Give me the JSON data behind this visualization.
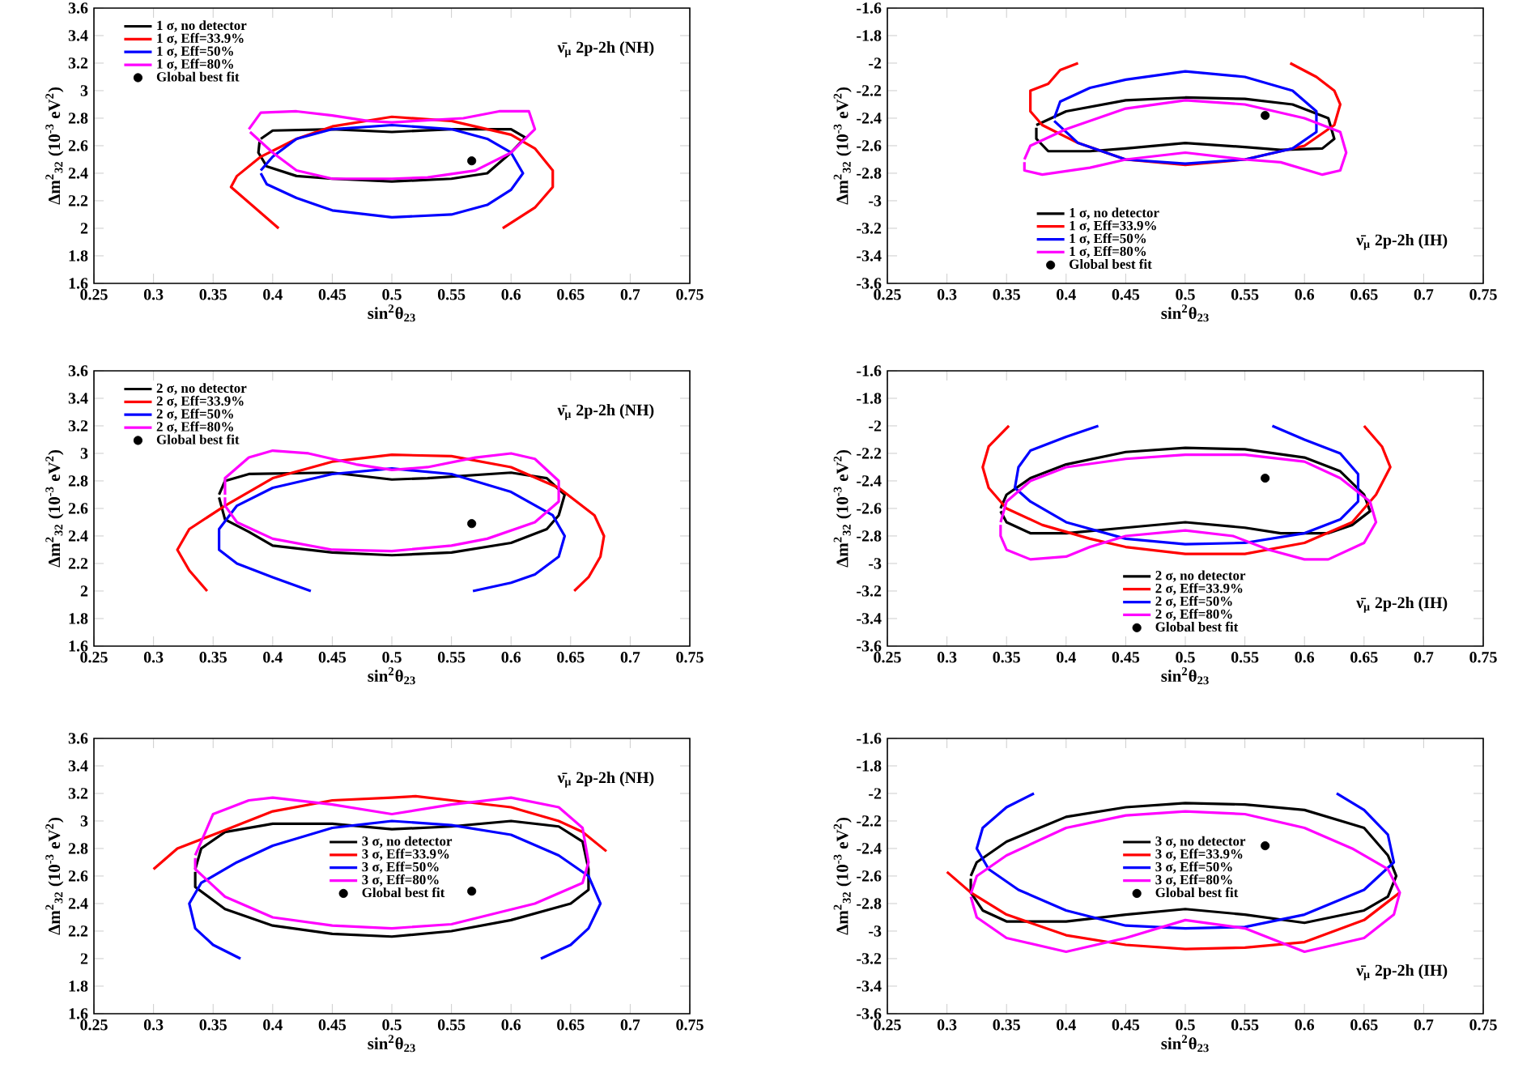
{
  "chart_data": [
    {
      "type": "line",
      "xlabel": "sin$^{2}$θ$_{23}$",
      "ylabel": "Δm$^{2}$$_{32}$ (10$^{-3}$ eV$^{2}$)",
      "annotations": [
        "ν̄$_{μ}$ 2p-2h (NH)"
      ],
      "legend": "top left",
      "xlim": [
        0.25,
        0.75
      ],
      "ylim": [
        1.6,
        3.6
      ],
      "xticks": [
        0.25,
        0.3,
        0.35,
        0.4,
        0.45,
        0.5,
        0.55,
        0.6,
        0.65,
        0.7,
        0.75
      ],
      "yticks": [
        1.6,
        1.8,
        2,
        2.2,
        2.4,
        2.6,
        2.8,
        3,
        3.2,
        3.4,
        3.6
      ],
      "series": [
        {
          "name": "1 σ, no detector",
          "color": "#000000",
          "x": [
            0.39,
            0.4,
            0.45,
            0.5,
            0.55,
            0.6,
            0.612,
            0.6,
            0.58,
            0.55,
            0.5,
            0.45,
            0.42,
            0.395,
            0.388,
            0.389
          ],
          "values": [
            2.65,
            2.71,
            2.72,
            2.7,
            2.72,
            2.72,
            2.66,
            2.55,
            2.4,
            2.36,
            2.34,
            2.36,
            2.38,
            2.45,
            2.55,
            2.63
          ]
        },
        {
          "name": "1 σ, Eff=33.9%",
          "color": "#ff0000",
          "x": [
            0.405,
            0.365,
            0.37,
            0.39,
            0.42,
            0.45,
            0.5,
            0.55,
            0.6,
            0.62,
            0.635,
            0.635,
            0.62,
            0.593
          ],
          "values": [
            2.0,
            2.3,
            2.38,
            2.52,
            2.65,
            2.74,
            2.81,
            2.78,
            2.68,
            2.58,
            2.42,
            2.3,
            2.15,
            2.0
          ]
        },
        {
          "name": "1 σ, Eff=50%",
          "color": "#0000ff",
          "x": [
            0.39,
            0.395,
            0.42,
            0.45,
            0.5,
            0.55,
            0.58,
            0.6,
            0.61,
            0.6,
            0.58,
            0.55,
            0.5,
            0.45,
            0.42,
            0.4,
            0.39
          ],
          "values": [
            2.4,
            2.32,
            2.22,
            2.13,
            2.08,
            2.1,
            2.17,
            2.28,
            2.4,
            2.55,
            2.65,
            2.72,
            2.75,
            2.72,
            2.65,
            2.52,
            2.42
          ]
        },
        {
          "name": "1 σ, Eff=80%",
          "color": "#ff00ff",
          "x": [
            0.38,
            0.39,
            0.42,
            0.45,
            0.48,
            0.5,
            0.52,
            0.56,
            0.59,
            0.615,
            0.62,
            0.6,
            0.57,
            0.53,
            0.5,
            0.45,
            0.42,
            0.4,
            0.381
          ],
          "values": [
            2.72,
            2.84,
            2.85,
            2.82,
            2.78,
            2.77,
            2.78,
            2.8,
            2.85,
            2.85,
            2.72,
            2.55,
            2.42,
            2.37,
            2.36,
            2.36,
            2.42,
            2.55,
            2.7
          ]
        },
        {
          "name": "Global best fit",
          "type": "scatter",
          "marker": "circle",
          "color": "#000000",
          "x": [
            0.567
          ],
          "values": [
            2.49
          ]
        }
      ]
    },
    {
      "type": "line",
      "xlabel": "sin$^{2}$θ$_{23}$",
      "ylabel": "Δm$^{2}$$_{32}$ (10$^{-3}$ eV$^{2}$)",
      "annotations": [
        "ν̄$_{μ}$ 2p-2h (IH)"
      ],
      "legend": "bottom left",
      "xlim": [
        0.25,
        0.75
      ],
      "ylim": [
        -3.6,
        -1.6
      ],
      "xticks": [
        0.25,
        0.3,
        0.35,
        0.4,
        0.45,
        0.5,
        0.55,
        0.6,
        0.65,
        0.7,
        0.75
      ],
      "yticks": [
        -3.6,
        -3.4,
        -3.2,
        -3,
        -2.8,
        -2.6,
        -2.4,
        -2.2,
        -2,
        -1.8,
        -1.6
      ],
      "series": [
        {
          "name": "1 σ, no detector",
          "color": "#000000",
          "x": [
            0.375,
            0.4,
            0.45,
            0.5,
            0.55,
            0.59,
            0.62,
            0.625,
            0.615,
            0.58,
            0.55,
            0.5,
            0.45,
            0.42,
            0.385,
            0.375,
            0.375
          ],
          "values": [
            -2.45,
            -2.35,
            -2.27,
            -2.25,
            -2.26,
            -2.3,
            -2.4,
            -2.55,
            -2.62,
            -2.63,
            -2.61,
            -2.58,
            -2.62,
            -2.64,
            -2.64,
            -2.55,
            -2.47
          ]
        },
        {
          "name": "1 σ, Eff=33.9%",
          "color": "#ff0000",
          "x": [
            0.41,
            0.395,
            0.385,
            0.37,
            0.37,
            0.38,
            0.41,
            0.45,
            0.5,
            0.55,
            0.6,
            0.625,
            0.63,
            0.625,
            0.61,
            0.588
          ],
          "values": [
            -2.0,
            -2.05,
            -2.15,
            -2.2,
            -2.35,
            -2.45,
            -2.58,
            -2.7,
            -2.74,
            -2.7,
            -2.6,
            -2.45,
            -2.3,
            -2.2,
            -2.1,
            -2.0
          ]
        },
        {
          "name": "1 σ, Eff=50%",
          "color": "#0000ff",
          "x": [
            0.39,
            0.395,
            0.42,
            0.45,
            0.5,
            0.55,
            0.59,
            0.61,
            0.61,
            0.59,
            0.55,
            0.5,
            0.45,
            0.41,
            0.39
          ],
          "values": [
            -2.4,
            -2.28,
            -2.18,
            -2.12,
            -2.06,
            -2.1,
            -2.2,
            -2.35,
            -2.5,
            -2.62,
            -2.7,
            -2.73,
            -2.7,
            -2.58,
            -2.42
          ]
        },
        {
          "name": "1 σ, Eff=80%",
          "color": "#ff00ff",
          "x": [
            0.365,
            0.37,
            0.4,
            0.45,
            0.5,
            0.55,
            0.6,
            0.63,
            0.635,
            0.63,
            0.615,
            0.58,
            0.55,
            0.5,
            0.45,
            0.42,
            0.38,
            0.365,
            0.365
          ],
          "values": [
            -2.7,
            -2.6,
            -2.48,
            -2.33,
            -2.27,
            -2.3,
            -2.4,
            -2.5,
            -2.65,
            -2.78,
            -2.81,
            -2.72,
            -2.7,
            -2.65,
            -2.7,
            -2.76,
            -2.81,
            -2.78,
            -2.72
          ]
        },
        {
          "name": "Global best fit",
          "type": "scatter",
          "marker": "circle",
          "color": "#000000",
          "x": [
            0.567
          ],
          "values": [
            -2.38
          ]
        }
      ]
    },
    {
      "type": "line",
      "xlabel": "sin$^{2}$θ$_{23}$",
      "ylabel": "Δm$^{2}$$_{32}$ (10$^{-3}$ eV$^{2}$)",
      "annotations": [
        "ν̄$_{μ}$ 2p-2h (NH)"
      ],
      "legend": "top left",
      "xlim": [
        0.25,
        0.75
      ],
      "ylim": [
        1.6,
        3.6
      ],
      "xticks": [
        0.25,
        0.3,
        0.35,
        0.4,
        0.45,
        0.5,
        0.55,
        0.6,
        0.65,
        0.7,
        0.75
      ],
      "yticks": [
        1.6,
        1.8,
        2,
        2.2,
        2.4,
        2.6,
        2.8,
        3,
        3.2,
        3.4,
        3.6
      ],
      "series": [
        {
          "name": "2 σ, no detector",
          "color": "#000000",
          "x": [
            0.355,
            0.36,
            0.38,
            0.45,
            0.5,
            0.53,
            0.6,
            0.63,
            0.645,
            0.64,
            0.63,
            0.6,
            0.55,
            0.5,
            0.45,
            0.4,
            0.38,
            0.36,
            0.355
          ],
          "values": [
            2.7,
            2.8,
            2.85,
            2.86,
            2.81,
            2.82,
            2.86,
            2.82,
            2.7,
            2.55,
            2.45,
            2.35,
            2.28,
            2.26,
            2.28,
            2.33,
            2.43,
            2.52,
            2.68
          ]
        },
        {
          "name": "2 σ, Eff=33.9%",
          "color": "#ff0000",
          "x": [
            0.345,
            0.33,
            0.32,
            0.33,
            0.36,
            0.4,
            0.45,
            0.5,
            0.55,
            0.6,
            0.64,
            0.67,
            0.678,
            0.675,
            0.665,
            0.653
          ],
          "values": [
            2.0,
            2.15,
            2.3,
            2.45,
            2.62,
            2.82,
            2.94,
            2.99,
            2.98,
            2.9,
            2.75,
            2.55,
            2.4,
            2.25,
            2.1,
            2.0
          ]
        },
        {
          "name": "2 σ, Eff=50%",
          "color": "#0000ff",
          "x": [
            0.432,
            0.4,
            0.37,
            0.355,
            0.355,
            0.37,
            0.4,
            0.45,
            0.5,
            0.55,
            0.6,
            0.635,
            0.645,
            0.64,
            0.62,
            0.6,
            0.568
          ],
          "values": [
            2.0,
            2.1,
            2.2,
            2.3,
            2.45,
            2.62,
            2.75,
            2.85,
            2.89,
            2.85,
            2.72,
            2.55,
            2.4,
            2.25,
            2.12,
            2.06,
            2.0
          ]
        },
        {
          "name": "2 σ, Eff=80%",
          "color": "#ff00ff",
          "x": [
            0.36,
            0.36,
            0.38,
            0.4,
            0.43,
            0.47,
            0.5,
            0.53,
            0.57,
            0.6,
            0.62,
            0.64,
            0.64,
            0.62,
            0.58,
            0.55,
            0.5,
            0.45,
            0.4,
            0.37,
            0.36,
            0.36
          ],
          "values": [
            2.7,
            2.82,
            2.97,
            3.02,
            3.0,
            2.92,
            2.88,
            2.9,
            2.97,
            3.0,
            2.96,
            2.8,
            2.65,
            2.5,
            2.38,
            2.33,
            2.29,
            2.3,
            2.38,
            2.5,
            2.62,
            2.68
          ]
        },
        {
          "name": "Global best fit",
          "type": "scatter",
          "marker": "circle",
          "color": "#000000",
          "x": [
            0.567
          ],
          "values": [
            2.49
          ]
        }
      ]
    },
    {
      "type": "line",
      "xlabel": "sin$^{2}$θ$_{23}$",
      "ylabel": "Δm$^{2}$$_{32}$ (10$^{-3}$ eV$^{2}$)",
      "annotations": [
        "ν̄$_{μ}$ 2p-2h (IH)"
      ],
      "legend": "bottom",
      "xlim": [
        0.25,
        0.75
      ],
      "ylim": [
        -3.6,
        -1.6
      ],
      "xticks": [
        0.25,
        0.3,
        0.35,
        0.4,
        0.45,
        0.5,
        0.55,
        0.6,
        0.65,
        0.7,
        0.75
      ],
      "yticks": [
        -3.6,
        -3.4,
        -3.2,
        -3,
        -2.8,
        -2.6,
        -2.4,
        -2.2,
        -2,
        -1.8,
        -1.6
      ],
      "series": [
        {
          "name": "2 σ, no detector",
          "color": "#000000",
          "x": [
            0.345,
            0.35,
            0.37,
            0.4,
            0.45,
            0.5,
            0.55,
            0.6,
            0.63,
            0.65,
            0.655,
            0.64,
            0.62,
            0.58,
            0.55,
            0.5,
            0.45,
            0.4,
            0.37,
            0.35,
            0.345
          ],
          "values": [
            -2.6,
            -2.5,
            -2.38,
            -2.28,
            -2.19,
            -2.16,
            -2.17,
            -2.23,
            -2.33,
            -2.5,
            -2.62,
            -2.72,
            -2.78,
            -2.78,
            -2.74,
            -2.7,
            -2.74,
            -2.78,
            -2.78,
            -2.7,
            -2.62
          ]
        },
        {
          "name": "2 σ, Eff=33.9%",
          "color": "#ff0000",
          "x": [
            0.352,
            0.335,
            0.33,
            0.335,
            0.35,
            0.38,
            0.42,
            0.45,
            0.5,
            0.55,
            0.6,
            0.64,
            0.66,
            0.672,
            0.665,
            0.65
          ],
          "values": [
            -2.0,
            -2.15,
            -2.3,
            -2.45,
            -2.6,
            -2.72,
            -2.82,
            -2.88,
            -2.93,
            -2.93,
            -2.85,
            -2.7,
            -2.5,
            -2.3,
            -2.15,
            -2.0
          ]
        },
        {
          "name": "2 σ, Eff=50%",
          "color": "#0000ff",
          "x": [
            0.427,
            0.4,
            0.37,
            0.36,
            0.357,
            0.37,
            0.4,
            0.45,
            0.5,
            0.55,
            0.6,
            0.63,
            0.645,
            0.645,
            0.63,
            0.6,
            0.573
          ],
          "values": [
            -2.0,
            -2.08,
            -2.18,
            -2.3,
            -2.45,
            -2.55,
            -2.7,
            -2.82,
            -2.86,
            -2.85,
            -2.78,
            -2.68,
            -2.55,
            -2.35,
            -2.2,
            -2.1,
            -2.0
          ]
        },
        {
          "name": "2 σ, Eff=80%",
          "color": "#ff00ff",
          "x": [
            0.345,
            0.35,
            0.37,
            0.4,
            0.45,
            0.5,
            0.55,
            0.6,
            0.63,
            0.655,
            0.66,
            0.65,
            0.62,
            0.6,
            0.57,
            0.54,
            0.5,
            0.45,
            0.42,
            0.4,
            0.37,
            0.35,
            0.345,
            0.345
          ],
          "values": [
            -2.7,
            -2.55,
            -2.4,
            -2.3,
            -2.24,
            -2.21,
            -2.21,
            -2.26,
            -2.38,
            -2.55,
            -2.7,
            -2.85,
            -2.97,
            -2.97,
            -2.9,
            -2.8,
            -2.76,
            -2.8,
            -2.88,
            -2.95,
            -2.97,
            -2.9,
            -2.8,
            -2.72
          ]
        },
        {
          "name": "Global best fit",
          "type": "scatter",
          "marker": "circle",
          "color": "#000000",
          "x": [
            0.567
          ],
          "values": [
            -2.38
          ]
        }
      ]
    },
    {
      "type": "line",
      "xlabel": "sin$^{2}$θ$_{23}$",
      "ylabel": "Δm$^{2}$$_{32}$ (10$^{-3}$ eV$^{2}$)",
      "annotations": [
        "ν̄$_{μ}$ 2p-2h (NH)"
      ],
      "legend": "center",
      "xlim": [
        0.25,
        0.75
      ],
      "ylim": [
        1.6,
        3.6
      ],
      "xticks": [
        0.25,
        0.3,
        0.35,
        0.4,
        0.45,
        0.5,
        0.55,
        0.6,
        0.65,
        0.7,
        0.75
      ],
      "yticks": [
        1.6,
        1.8,
        2,
        2.2,
        2.4,
        2.6,
        2.8,
        3,
        3.2,
        3.4,
        3.6
      ],
      "series": [
        {
          "name": "3 σ, no detector",
          "color": "#000000",
          "x": [
            0.335,
            0.34,
            0.36,
            0.4,
            0.45,
            0.5,
            0.55,
            0.6,
            0.64,
            0.66,
            0.665,
            0.665,
            0.65,
            0.6,
            0.55,
            0.5,
            0.45,
            0.4,
            0.36,
            0.335,
            0.335
          ],
          "values": [
            2.65,
            2.8,
            2.92,
            2.98,
            2.98,
            2.94,
            2.96,
            3.0,
            2.96,
            2.85,
            2.65,
            2.5,
            2.4,
            2.28,
            2.2,
            2.16,
            2.18,
            2.24,
            2.36,
            2.52,
            2.63
          ]
        },
        {
          "name": "3 σ, Eff=33.9%",
          "color": "#ff0000",
          "x": [
            0.3,
            0.32,
            0.35,
            0.4,
            0.45,
            0.5,
            0.52,
            0.55,
            0.6,
            0.64,
            0.66,
            0.68
          ],
          "values": [
            2.65,
            2.8,
            2.9,
            3.07,
            3.15,
            3.17,
            3.18,
            3.15,
            3.1,
            3.0,
            2.92,
            2.78
          ]
        },
        {
          "name": "3 σ, Eff=50%",
          "color": "#0000ff",
          "x": [
            0.373,
            0.35,
            0.335,
            0.33,
            0.34,
            0.37,
            0.4,
            0.45,
            0.5,
            0.55,
            0.6,
            0.64,
            0.665,
            0.675,
            0.665,
            0.65,
            0.625
          ],
          "values": [
            2.0,
            2.1,
            2.22,
            2.4,
            2.55,
            2.7,
            2.82,
            2.95,
            3.0,
            2.97,
            2.9,
            2.75,
            2.6,
            2.4,
            2.22,
            2.1,
            2.0
          ]
        },
        {
          "name": "3 σ, Eff=80%",
          "color": "#ff00ff",
          "x": [
            0.335,
            0.35,
            0.38,
            0.4,
            0.45,
            0.5,
            0.55,
            0.6,
            0.64,
            0.66,
            0.665,
            0.66,
            0.62,
            0.55,
            0.5,
            0.45,
            0.4,
            0.36,
            0.335,
            0.335
          ],
          "values": [
            2.75,
            3.05,
            3.15,
            3.17,
            3.12,
            3.05,
            3.12,
            3.17,
            3.1,
            2.95,
            2.7,
            2.55,
            2.4,
            2.25,
            2.22,
            2.24,
            2.3,
            2.45,
            2.65,
            2.73
          ]
        },
        {
          "name": "Global best fit",
          "type": "scatter",
          "marker": "circle",
          "color": "#000000",
          "x": [
            0.567
          ],
          "values": [
            2.49
          ]
        }
      ]
    },
    {
      "type": "line",
      "xlabel": "sin$^{2}$θ$_{23}$",
      "ylabel": "Δm$^{2}$$_{32}$ (10$^{-3}$ eV$^{2}$)",
      "annotations": [
        "ν̄$_{μ}$ 2p-2h (IH)"
      ],
      "legend": "center",
      "xlim": [
        0.25,
        0.75
      ],
      "ylim": [
        -3.6,
        -1.6
      ],
      "xticks": [
        0.25,
        0.3,
        0.35,
        0.4,
        0.45,
        0.5,
        0.55,
        0.6,
        0.65,
        0.7,
        0.75
      ],
      "yticks": [
        -3.6,
        -3.4,
        -3.2,
        -3,
        -2.8,
        -2.6,
        -2.4,
        -2.2,
        -2,
        -1.8,
        -1.6
      ],
      "series": [
        {
          "name": "3 σ, no detector",
          "color": "#000000",
          "x": [
            0.32,
            0.325,
            0.35,
            0.4,
            0.45,
            0.5,
            0.55,
            0.6,
            0.65,
            0.67,
            0.677,
            0.67,
            0.65,
            0.6,
            0.55,
            0.5,
            0.45,
            0.4,
            0.35,
            0.33,
            0.32,
            0.32
          ],
          "values": [
            -2.6,
            -2.5,
            -2.35,
            -2.17,
            -2.1,
            -2.07,
            -2.08,
            -2.12,
            -2.25,
            -2.45,
            -2.6,
            -2.75,
            -2.85,
            -2.94,
            -2.88,
            -2.84,
            -2.88,
            -2.93,
            -2.93,
            -2.85,
            -2.72,
            -2.62
          ]
        },
        {
          "name": "3 σ, Eff=33.9%",
          "color": "#ff0000",
          "x": [
            0.3,
            0.32,
            0.35,
            0.4,
            0.45,
            0.5,
            0.55,
            0.6,
            0.65,
            0.68
          ],
          "values": [
            -2.57,
            -2.72,
            -2.88,
            -3.03,
            -3.1,
            -3.13,
            -3.12,
            -3.08,
            -2.92,
            -2.72
          ]
        },
        {
          "name": "3 σ, Eff=50%",
          "color": "#0000ff",
          "x": [
            0.373,
            0.35,
            0.33,
            0.325,
            0.335,
            0.36,
            0.4,
            0.45,
            0.5,
            0.55,
            0.6,
            0.65,
            0.675,
            0.67,
            0.65,
            0.627
          ],
          "values": [
            -2.0,
            -2.1,
            -2.25,
            -2.4,
            -2.55,
            -2.7,
            -2.85,
            -2.96,
            -2.98,
            -2.97,
            -2.88,
            -2.7,
            -2.5,
            -2.3,
            -2.12,
            -2.0
          ]
        },
        {
          "name": "3 σ, Eff=80%",
          "color": "#ff00ff",
          "x": [
            0.32,
            0.325,
            0.35,
            0.4,
            0.45,
            0.5,
            0.55,
            0.6,
            0.65,
            0.675,
            0.68,
            0.67,
            0.64,
            0.6,
            0.55,
            0.5,
            0.45,
            0.4,
            0.35,
            0.325,
            0.32
          ],
          "values": [
            -2.75,
            -2.9,
            -3.05,
            -3.15,
            -3.05,
            -2.92,
            -2.98,
            -3.15,
            -3.05,
            -2.88,
            -2.72,
            -2.55,
            -2.4,
            -2.25,
            -2.15,
            -2.13,
            -2.16,
            -2.25,
            -2.45,
            -2.6,
            -2.73
          ]
        },
        {
          "name": "Global best fit",
          "type": "scatter",
          "marker": "circle",
          "color": "#000000",
          "x": [
            0.567
          ],
          "values": [
            -2.38
          ]
        }
      ]
    }
  ]
}
